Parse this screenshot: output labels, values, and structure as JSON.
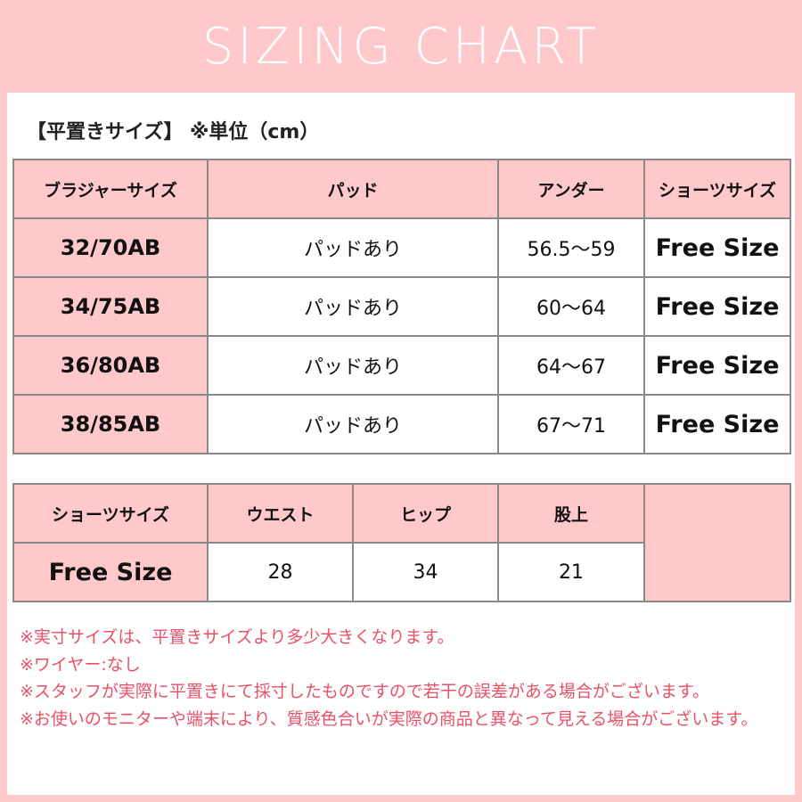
{
  "header": {
    "title": "SIZING CHART"
  },
  "subtitle": "【平置きサイズ】 ※単位（cm）",
  "bra_table": {
    "headers": [
      "ブラジャーサイズ",
      "パッド",
      "アンダー",
      "ショーツサイズ"
    ],
    "rows": [
      [
        "32/70AB",
        "パッドあり",
        "56.5～59",
        "Free Size"
      ],
      [
        "34/75AB",
        "パッドあり",
        "60～64",
        "Free Size"
      ],
      [
        "36/80AB",
        "パッドあり",
        "64～67",
        "Free Size"
      ],
      [
        "38/85AB",
        "パッドあり",
        "67～71",
        "Free Size"
      ]
    ]
  },
  "shorts_table": {
    "headers": [
      "ショーツサイズ",
      "ウエスト",
      "ヒップ",
      "股上"
    ],
    "rows": [
      [
        "Free Size",
        "28",
        "34",
        "21"
      ]
    ]
  },
  "notes": [
    "※実寸サイズは、平置きサイズより多少大きくなります。",
    "※ワイヤー:なし",
    "※スタッフが実際に平置きにて採寸したものですので若干の誤差がある場合がございます。",
    "※お使いのモニターや端末により、質感色合いが実際の商品と異なって見える場合がございます。"
  ],
  "colors": {
    "accent_pink": "#ffc9cc",
    "note_text": "#e85168",
    "border": "#8a8a8a"
  }
}
